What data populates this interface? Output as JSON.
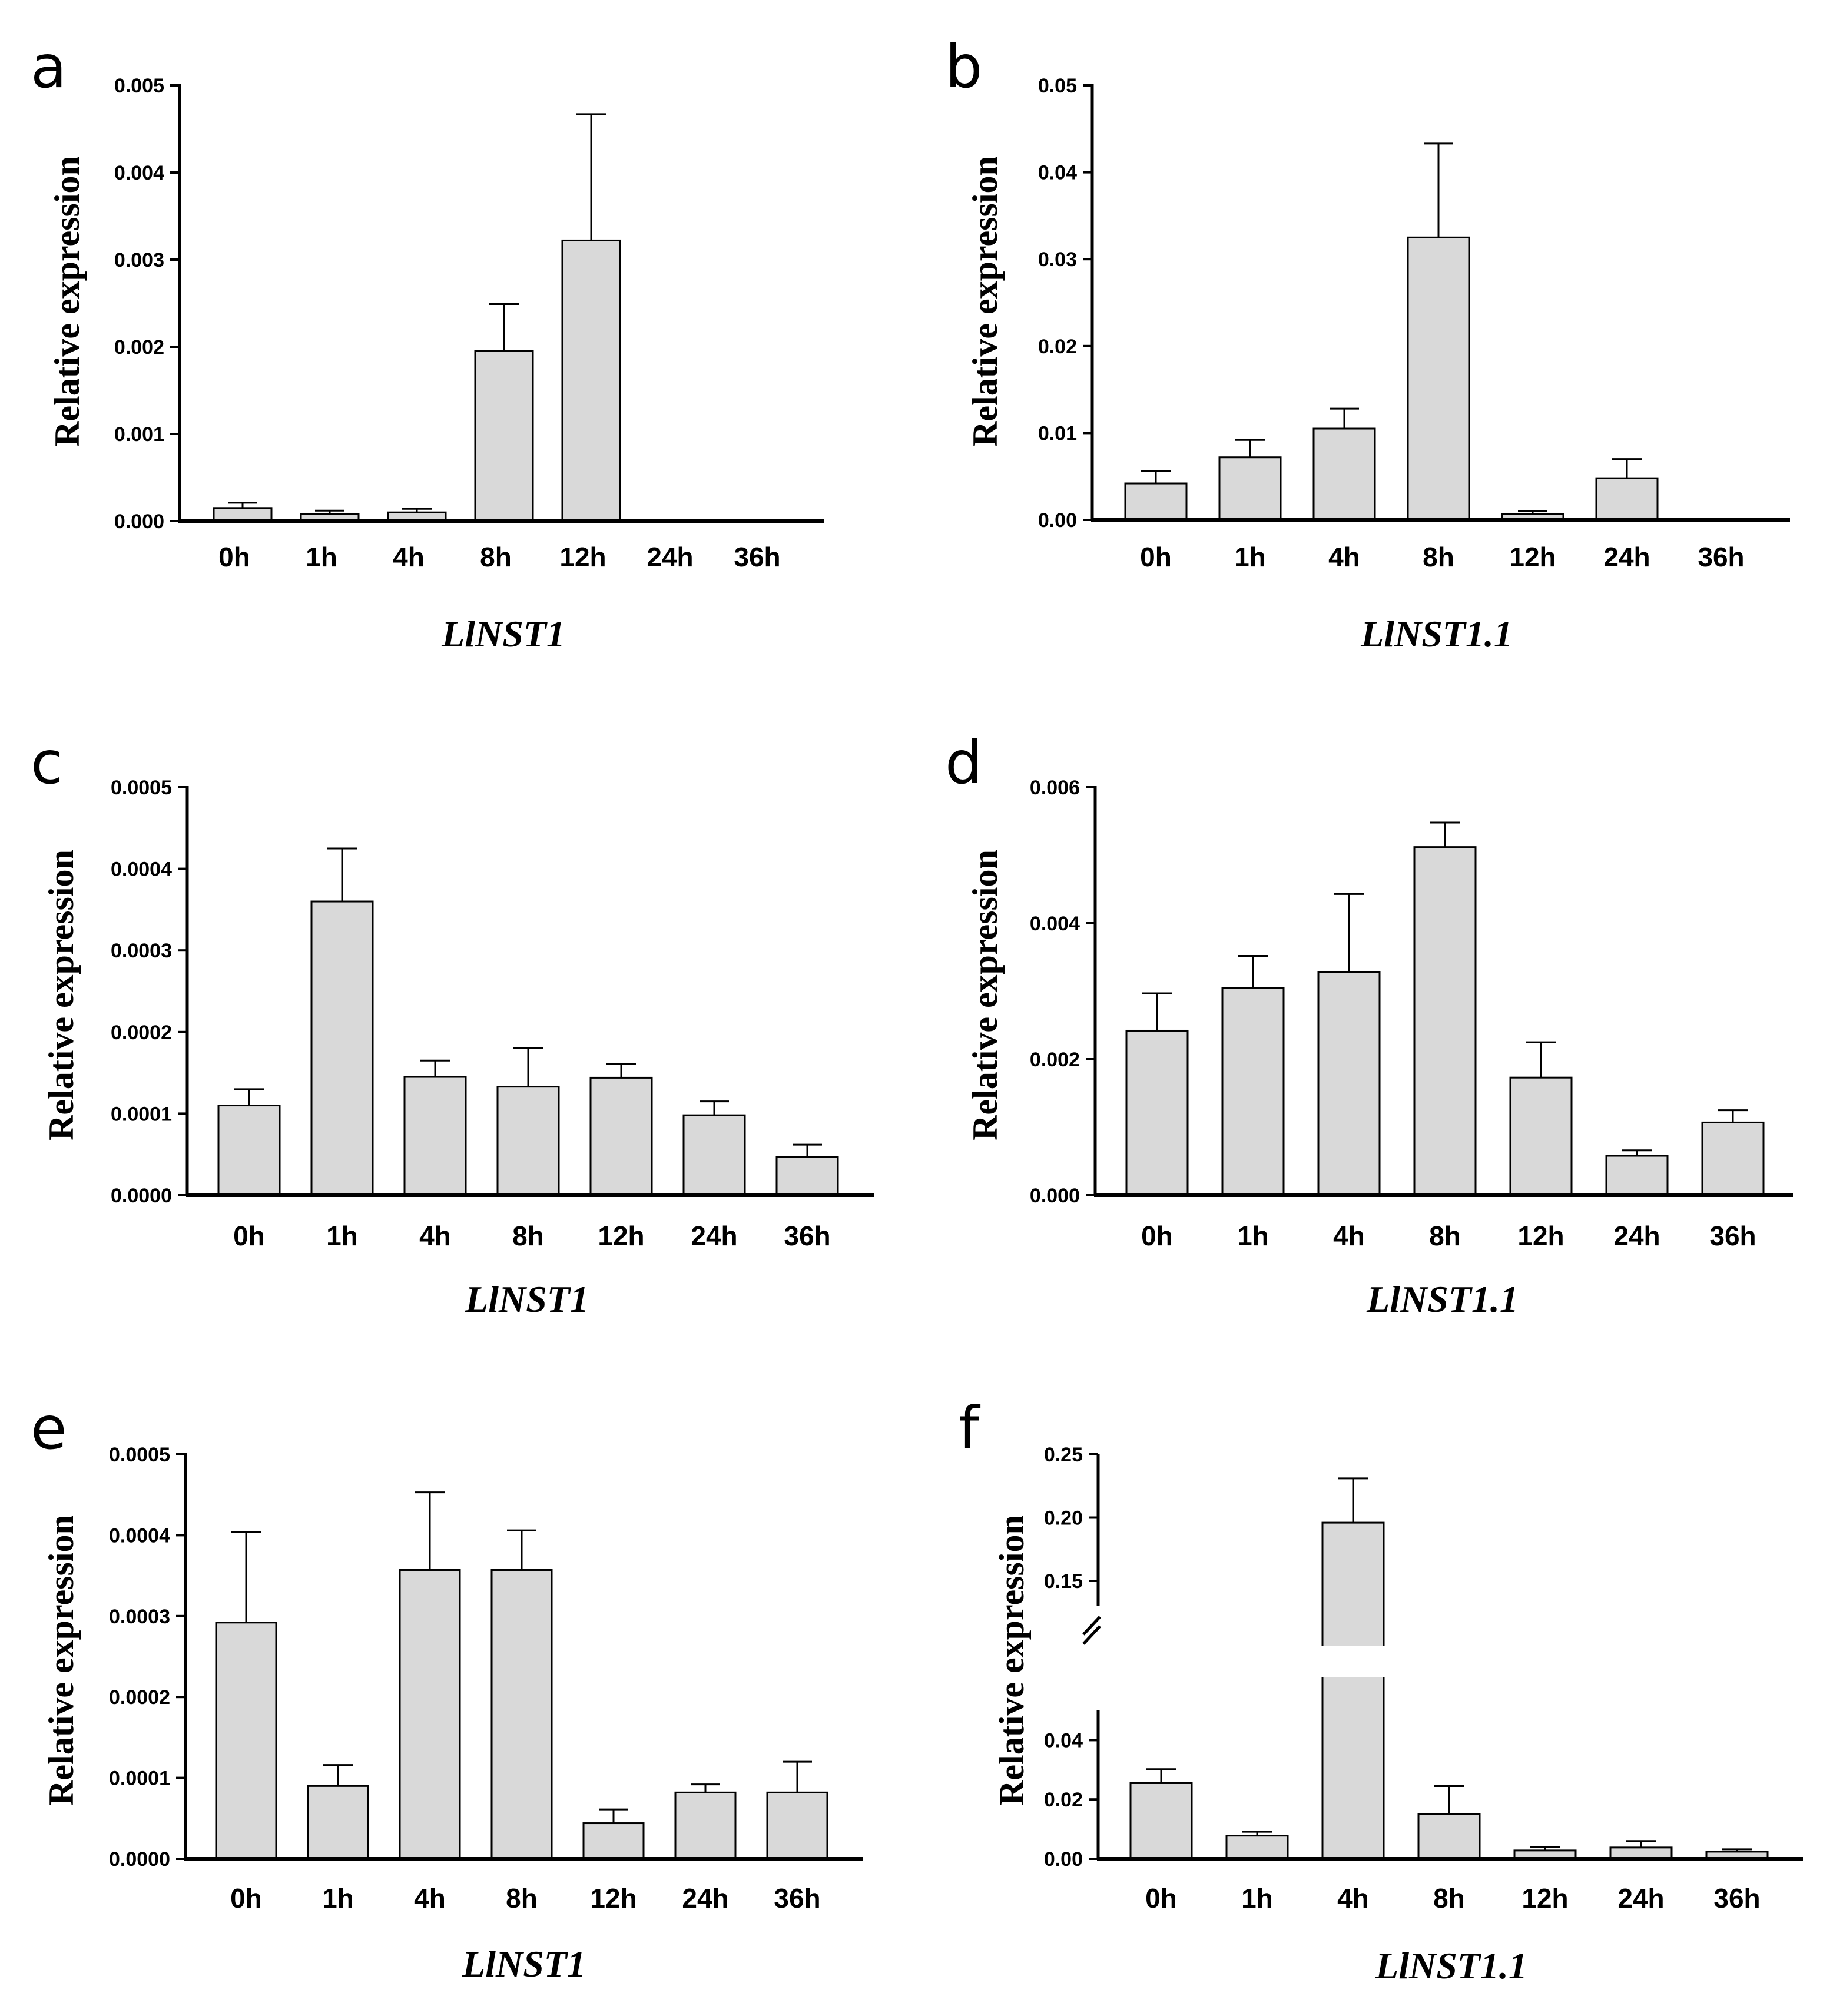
{
  "figure": {
    "bar_fill": "#d9d9d9",
    "bar_stroke": "#000000",
    "axis_color": "#000000"
  },
  "chart_data": [
    {
      "panel": "a",
      "type": "bar",
      "title": "",
      "ylabel": "Relative expression",
      "xlabel": "LlNST1",
      "categories": [
        "0h",
        "1h",
        "4h",
        "8h",
        "12h",
        "24h",
        "36h"
      ],
      "values": [
        0.00015,
        8e-05,
        0.0001,
        0.00195,
        0.00322,
        0,
        0
      ],
      "errors": [
        6e-05,
        4e-05,
        4e-05,
        0.00054,
        0.00145,
        0,
        0
      ],
      "ylim": [
        0,
        0.005
      ],
      "yticks": [
        "0.000",
        "0.001",
        "0.002",
        "0.003",
        "0.004",
        "0.005"
      ]
    },
    {
      "panel": "b",
      "type": "bar",
      "title": "",
      "ylabel": "Relative expression",
      "xlabel": "LlNST1.1",
      "categories": [
        "0h",
        "1h",
        "4h",
        "8h",
        "12h",
        "24h",
        "36h"
      ],
      "values": [
        0.0042,
        0.0072,
        0.0105,
        0.0325,
        0.0007,
        0.0048,
        0
      ],
      "errors": [
        0.0014,
        0.002,
        0.0023,
        0.0108,
        0.0003,
        0.0022,
        0
      ],
      "ylim": [
        0,
        0.05
      ],
      "yticks": [
        "0.00",
        "0.01",
        "0.02",
        "0.03",
        "0.04",
        "0.05"
      ]
    },
    {
      "panel": "c",
      "type": "bar",
      "title": "",
      "ylabel": "Relative expression",
      "xlabel": "LlNST1",
      "categories": [
        "0h",
        "1h",
        "4h",
        "8h",
        "12h",
        "24h",
        "36h"
      ],
      "values": [
        0.00011,
        0.00036,
        0.000145,
        0.000133,
        0.000144,
        9.8e-05,
        4.7e-05
      ],
      "errors": [
        2e-05,
        6.5e-05,
        2e-05,
        4.7e-05,
        1.7e-05,
        1.7e-05,
        1.5e-05
      ],
      "ylim": [
        0,
        0.0005
      ],
      "yticks": [
        "0.0000",
        "0.0001",
        "0.0002",
        "0.0003",
        "0.0004",
        "0.0005"
      ]
    },
    {
      "panel": "d",
      "type": "bar",
      "title": "",
      "ylabel": "Relative expression",
      "xlabel": "LlNST1.1",
      "categories": [
        "0h",
        "1h",
        "4h",
        "8h",
        "12h",
        "24h",
        "36h"
      ],
      "values": [
        0.00242,
        0.00305,
        0.00328,
        0.00512,
        0.00173,
        0.00058,
        0.00107
      ],
      "errors": [
        0.00055,
        0.00047,
        0.00115,
        0.00036,
        0.00052,
        8e-05,
        0.00018
      ],
      "ylim": [
        0,
        0.006
      ],
      "yticks": [
        "0.000",
        "0.002",
        "0.004",
        "0.006"
      ]
    },
    {
      "panel": "e",
      "type": "bar",
      "title": "",
      "ylabel": "Relative expression",
      "xlabel": "LlNST1",
      "categories": [
        "0h",
        "1h",
        "4h",
        "8h",
        "12h",
        "24h",
        "36h"
      ],
      "values": [
        0.000292,
        9e-05,
        0.000357,
        0.000357,
        4.4e-05,
        8.2e-05,
        8.2e-05
      ],
      "errors": [
        0.000112,
        2.6e-05,
        9.6e-05,
        4.9e-05,
        1.7e-05,
        1e-05,
        3.8e-05
      ],
      "ylim": [
        0,
        0.0005
      ],
      "yticks": [
        "0.0000",
        "0.0001",
        "0.0002",
        "0.0003",
        "0.0004",
        "0.0005"
      ]
    },
    {
      "panel": "f",
      "type": "bar",
      "title": "",
      "ylabel": "Relative expression",
      "xlabel": "LlNST1.1",
      "categories": [
        "0h",
        "1h",
        "4h",
        "8h",
        "12h",
        "24h",
        "36h"
      ],
      "values": [
        0.0255,
        0.0078,
        0.196,
        0.015,
        0.0028,
        0.0038,
        0.0024
      ],
      "errors": [
        0.0047,
        0.0013,
        0.035,
        0.0095,
        0.0012,
        0.0022,
        0.0008
      ],
      "ylim": [
        0,
        0.25
      ],
      "axis_break": [
        0.05,
        0.13
      ],
      "yticks_lower": [
        "0.00",
        "0.02",
        "0.04"
      ],
      "yticks_upper": [
        "0.15",
        "0.20",
        "0.25"
      ]
    }
  ]
}
